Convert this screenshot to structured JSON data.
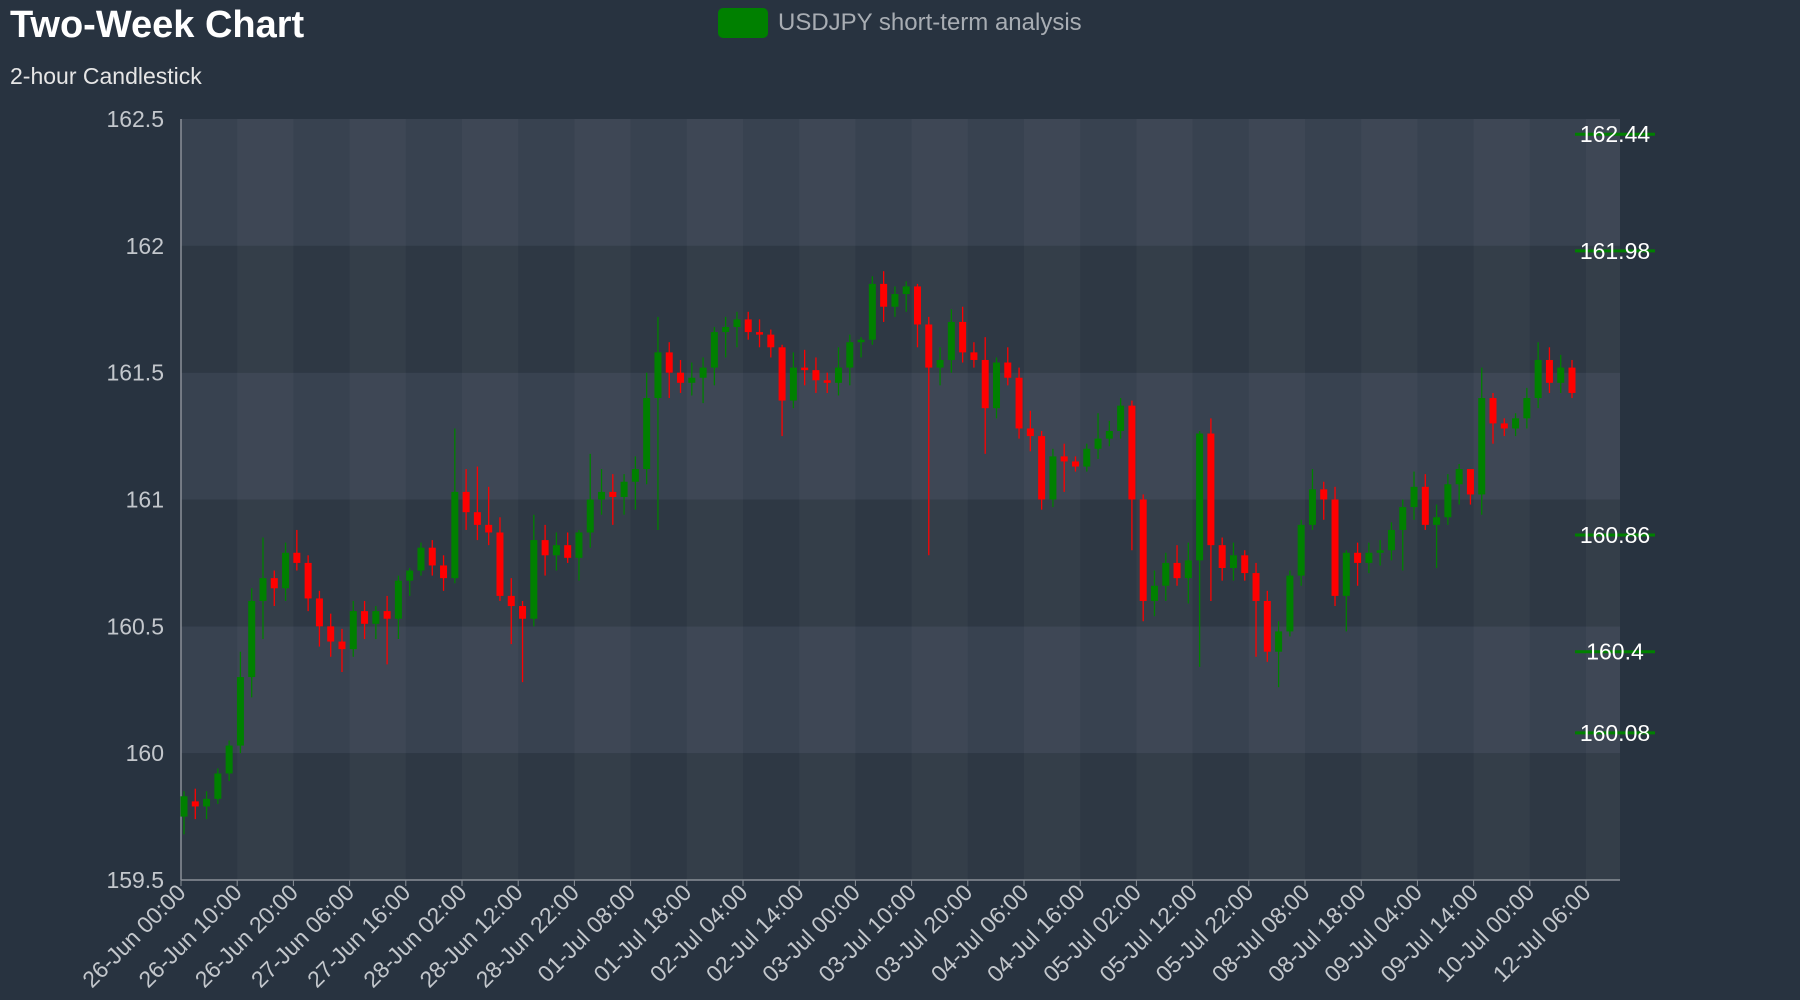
{
  "title": "Two-Week Chart",
  "subtitle": "2-hour Candlestick",
  "legend": {
    "label": "USDJPY short-term analysis",
    "color": "#008000"
  },
  "colors": {
    "up": "#008000",
    "down": "#ff0000",
    "background": "#283340",
    "plot_band_light": "#384250",
    "plot_band_dark": "#2e3844",
    "axis_text": "#c3c7cc",
    "level_line": "#008000",
    "level_text": "#ffffff"
  },
  "chart_data": {
    "type": "candlestick",
    "title": "Two-Week Chart",
    "subtitle": "2-hour Candlestick",
    "ylim": [
      159.5,
      162.5
    ],
    "yticks": [
      159.5,
      160,
      160.5,
      161,
      161.5,
      162,
      162.5
    ],
    "xticks": [
      "26-Jun 00:00",
      "26-Jun 10:00",
      "26-Jun 20:00",
      "27-Jun 06:00",
      "27-Jun 16:00",
      "28-Jun 02:00",
      "28-Jun 12:00",
      "28-Jun 22:00",
      "01-Jul 08:00",
      "01-Jul 18:00",
      "02-Jul 04:00",
      "02-Jul 14:00",
      "03-Jul 00:00",
      "03-Jul 10:00",
      "03-Jul 20:00",
      "04-Jul 06:00",
      "04-Jul 16:00",
      "05-Jul 02:00",
      "05-Jul 12:00",
      "05-Jul 22:00",
      "08-Jul 08:00",
      "08-Jul 18:00",
      "09-Jul 04:00",
      "09-Jul 14:00",
      "10-Jul 00:00",
      "12-Jul 06:00"
    ],
    "levels": [
      162.44,
      161.98,
      160.86,
      160.4,
      160.08
    ],
    "grid": true,
    "legend_position": "top-center",
    "candles": [
      [
        159.75,
        159.85,
        159.68,
        159.83
      ],
      [
        159.81,
        159.86,
        159.74,
        159.79
      ],
      [
        159.79,
        159.85,
        159.74,
        159.82
      ],
      [
        159.82,
        159.94,
        159.8,
        159.92
      ],
      [
        159.92,
        160.05,
        159.89,
        160.03
      ],
      [
        160.03,
        160.4,
        160.0,
        160.3
      ],
      [
        160.3,
        160.65,
        160.22,
        160.6
      ],
      [
        160.6,
        160.85,
        160.45,
        160.69
      ],
      [
        160.69,
        160.72,
        160.58,
        160.65
      ],
      [
        160.65,
        160.83,
        160.6,
        160.79
      ],
      [
        160.79,
        160.88,
        160.72,
        160.75
      ],
      [
        160.75,
        160.78,
        160.56,
        160.61
      ],
      [
        160.61,
        160.64,
        160.42,
        160.5
      ],
      [
        160.5,
        160.55,
        160.38,
        160.44
      ],
      [
        160.44,
        160.49,
        160.32,
        160.41
      ],
      [
        160.41,
        160.6,
        160.38,
        160.56
      ],
      [
        160.56,
        160.6,
        160.45,
        160.51
      ],
      [
        160.51,
        160.58,
        160.45,
        160.56
      ],
      [
        160.56,
        160.62,
        160.35,
        160.53
      ],
      [
        160.53,
        160.7,
        160.45,
        160.68
      ],
      [
        160.68,
        160.73,
        160.62,
        160.72
      ],
      [
        160.72,
        160.83,
        160.7,
        160.81
      ],
      [
        160.81,
        160.84,
        160.7,
        160.74
      ],
      [
        160.74,
        160.78,
        160.64,
        160.69
      ],
      [
        160.69,
        161.28,
        160.67,
        161.03
      ],
      [
        161.03,
        161.12,
        160.88,
        160.95
      ],
      [
        160.95,
        161.13,
        160.84,
        160.9
      ],
      [
        160.9,
        161.05,
        160.82,
        160.87
      ],
      [
        160.87,
        160.93,
        160.6,
        160.62
      ],
      [
        160.62,
        160.69,
        160.43,
        160.58
      ],
      [
        160.58,
        160.6,
        160.28,
        160.53
      ],
      [
        160.53,
        160.94,
        160.5,
        160.84
      ],
      [
        160.84,
        160.9,
        160.7,
        160.78
      ],
      [
        160.78,
        160.87,
        160.72,
        160.82
      ],
      [
        160.82,
        160.87,
        160.75,
        160.77
      ],
      [
        160.77,
        160.88,
        160.68,
        160.87
      ],
      [
        160.87,
        161.18,
        160.81,
        161.0
      ],
      [
        161.0,
        161.12,
        160.94,
        161.03
      ],
      [
        161.03,
        161.1,
        160.9,
        161.01
      ],
      [
        161.01,
        161.1,
        160.94,
        161.07
      ],
      [
        161.07,
        161.17,
        160.96,
        161.12
      ],
      [
        161.12,
        161.5,
        161.06,
        161.4
      ],
      [
        161.4,
        161.72,
        160.88,
        161.58
      ],
      [
        161.58,
        161.62,
        161.4,
        161.5
      ],
      [
        161.5,
        161.55,
        161.42,
        161.46
      ],
      [
        161.46,
        161.54,
        161.41,
        161.48
      ],
      [
        161.48,
        161.56,
        161.38,
        161.52
      ],
      [
        161.52,
        161.68,
        161.45,
        161.66
      ],
      [
        161.66,
        161.72,
        161.56,
        161.68
      ],
      [
        161.68,
        161.74,
        161.6,
        161.71
      ],
      [
        161.71,
        161.74,
        161.63,
        161.66
      ],
      [
        161.66,
        161.71,
        161.6,
        161.65
      ],
      [
        161.65,
        161.67,
        161.56,
        161.6
      ],
      [
        161.6,
        161.61,
        161.25,
        161.39
      ],
      [
        161.39,
        161.58,
        161.36,
        161.52
      ],
      [
        161.52,
        161.59,
        161.45,
        161.51
      ],
      [
        161.51,
        161.56,
        161.42,
        161.47
      ],
      [
        161.47,
        161.5,
        161.42,
        161.46
      ],
      [
        161.46,
        161.6,
        161.41,
        161.52
      ],
      [
        161.52,
        161.65,
        161.45,
        161.62
      ],
      [
        161.62,
        161.64,
        161.56,
        161.63
      ],
      [
        161.63,
        161.88,
        161.61,
        161.85
      ],
      [
        161.85,
        161.9,
        161.7,
        161.76
      ],
      [
        161.76,
        161.84,
        161.72,
        161.81
      ],
      [
        161.81,
        161.86,
        161.74,
        161.84
      ],
      [
        161.84,
        161.85,
        161.6,
        161.69
      ],
      [
        161.69,
        161.72,
        160.78,
        161.52
      ],
      [
        161.52,
        161.6,
        161.45,
        161.55
      ],
      [
        161.55,
        161.75,
        161.5,
        161.7
      ],
      [
        161.7,
        161.76,
        161.54,
        161.58
      ],
      [
        161.58,
        161.62,
        161.52,
        161.55
      ],
      [
        161.55,
        161.64,
        161.18,
        161.36
      ],
      [
        161.36,
        161.56,
        161.32,
        161.54
      ],
      [
        161.54,
        161.6,
        161.45,
        161.48
      ],
      [
        161.48,
        161.52,
        161.24,
        161.28
      ],
      [
        161.28,
        161.35,
        161.19,
        161.25
      ],
      [
        161.25,
        161.27,
        160.96,
        161.0
      ],
      [
        161.0,
        161.2,
        160.97,
        161.17
      ],
      [
        161.17,
        161.22,
        161.03,
        161.15
      ],
      [
        161.15,
        161.17,
        161.11,
        161.13
      ],
      [
        161.13,
        161.22,
        161.11,
        161.2
      ],
      [
        161.2,
        161.34,
        161.16,
        161.24
      ],
      [
        161.24,
        161.31,
        161.21,
        161.27
      ],
      [
        161.27,
        161.4,
        161.24,
        161.37
      ],
      [
        161.37,
        161.39,
        160.8,
        161.0
      ],
      [
        161.0,
        161.02,
        160.52,
        160.6
      ],
      [
        160.6,
        160.72,
        160.54,
        160.66
      ],
      [
        160.66,
        160.79,
        160.6,
        160.75
      ],
      [
        160.75,
        160.82,
        160.66,
        160.69
      ],
      [
        160.69,
        160.83,
        160.59,
        160.76
      ],
      [
        160.76,
        161.27,
        160.34,
        161.26
      ],
      [
        161.26,
        161.32,
        160.6,
        160.82
      ],
      [
        160.82,
        160.85,
        160.68,
        160.73
      ],
      [
        160.73,
        160.83,
        160.68,
        160.78
      ],
      [
        160.78,
        160.8,
        160.68,
        160.71
      ],
      [
        160.71,
        160.75,
        160.38,
        160.6
      ],
      [
        160.6,
        160.64,
        160.36,
        160.4
      ],
      [
        160.4,
        160.52,
        160.26,
        160.48
      ],
      [
        160.48,
        160.72,
        160.46,
        160.7
      ],
      [
        160.7,
        160.92,
        160.66,
        160.9
      ],
      [
        160.9,
        161.12,
        160.88,
        161.04
      ],
      [
        161.04,
        161.07,
        160.92,
        161.0
      ],
      [
        161.0,
        161.05,
        160.58,
        160.62
      ],
      [
        160.62,
        160.8,
        160.48,
        160.79
      ],
      [
        160.79,
        160.83,
        160.66,
        160.75
      ],
      [
        160.75,
        160.83,
        160.71,
        160.79
      ],
      [
        160.79,
        160.84,
        160.74,
        160.8
      ],
      [
        160.8,
        160.91,
        160.76,
        160.88
      ],
      [
        160.88,
        161.0,
        160.72,
        160.97
      ],
      [
        160.97,
        161.11,
        160.92,
        161.05
      ],
      [
        161.05,
        161.1,
        160.88,
        160.9
      ],
      [
        160.9,
        160.98,
        160.73,
        160.93
      ],
      [
        160.93,
        161.1,
        160.9,
        161.06
      ],
      [
        161.06,
        161.14,
        160.98,
        161.12
      ],
      [
        161.12,
        161.1,
        160.98,
        161.02
      ],
      [
        161.02,
        161.52,
        160.94,
        161.4
      ],
      [
        161.4,
        161.42,
        161.22,
        161.3
      ],
      [
        161.3,
        161.32,
        161.25,
        161.28
      ],
      [
        161.28,
        161.34,
        161.25,
        161.32
      ],
      [
        161.32,
        161.44,
        161.28,
        161.4
      ],
      [
        161.4,
        161.62,
        161.36,
        161.55
      ],
      [
        161.55,
        161.6,
        161.42,
        161.46
      ],
      [
        161.46,
        161.57,
        161.42,
        161.52
      ],
      [
        161.52,
        161.55,
        161.4,
        161.42
      ]
    ]
  }
}
